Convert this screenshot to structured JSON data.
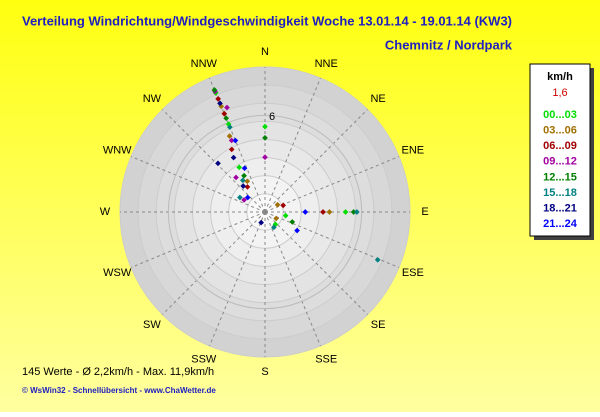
{
  "chart_data": {
    "type": "polar-scatter",
    "title": "Verteilung Windrichtung/Windgeschwindigkeit  Woche 13.01.14 - 19.01.14 (KW3)",
    "subtitle": "Chemnitz / Nordpark",
    "directions": [
      "N",
      "NNE",
      "NE",
      "ENE",
      "E",
      "ESE",
      "SE",
      "SSE",
      "S",
      "SSW",
      "SW",
      "WSW",
      "W",
      "WNW",
      "NW",
      "NNW"
    ],
    "rlim": [
      0,
      9
    ],
    "rticks": [
      6
    ],
    "legend_title": "km/h",
    "legend_value": "1,6",
    "series": [
      {
        "name": "00...03",
        "color": "#00dd00",
        "dir": [
          337.5,
          337.5,
          330,
          90,
          0,
          100,
          140
        ],
        "speed": [
          8.0,
          5.9,
          3.2,
          5.0,
          5.3,
          1.3,
          1.0
        ]
      },
      {
        "name": "03...06",
        "color": "#a07000",
        "dir": [
          337.5,
          335,
          330,
          90,
          120,
          60
        ],
        "speed": [
          7.1,
          5.2,
          2.2,
          4.0,
          0.8,
          0.9
        ]
      },
      {
        "name": "06...09",
        "color": "#a00000",
        "dir": [
          337.5,
          337.5,
          332,
          325,
          90,
          70
        ],
        "speed": [
          7.6,
          6.6,
          4.4,
          1.9,
          3.6,
          1.2
        ]
      },
      {
        "name": "09...12",
        "color": "#a000a0",
        "dir": [
          337.5,
          340,
          335,
          360,
          320,
          300
        ],
        "speed": [
          8.1,
          6.9,
          4.9,
          3.4,
          2.8,
          1.5
        ]
      },
      {
        "name": "12...15",
        "color": "#008000",
        "dir": [
          337.5,
          337.5,
          0,
          330,
          90,
          110
        ],
        "speed": [
          8.2,
          6.3,
          4.6,
          2.6,
          5.5,
          1.8
        ]
      },
      {
        "name": "15...18",
        "color": "#008080",
        "dir": [
          113,
          337.5,
          325,
          300,
          90,
          150
        ],
        "speed": [
          7.6,
          5.7,
          2.4,
          1.8,
          5.7,
          1.1
        ]
      },
      {
        "name": "18...21",
        "color": "#000080",
        "dir": [
          337.5,
          316,
          330,
          320,
          200
        ],
        "speed": [
          7.3,
          4.2,
          3.9,
          2.1,
          0.7
        ]
      },
      {
        "name": "21...24",
        "color": "#0000ff",
        "dir": [
          337.5,
          90,
          335,
          310,
          120
        ],
        "speed": [
          4.8,
          2.5,
          3.0,
          1.4,
          2.3
        ]
      }
    ],
    "footer": "145 Werte   -   Ø 2,2km/h  -  Max. 11,9km/h",
    "credit": "© WsWin32  -  Schnellübersicht  -  www.ChaWetter.de"
  }
}
